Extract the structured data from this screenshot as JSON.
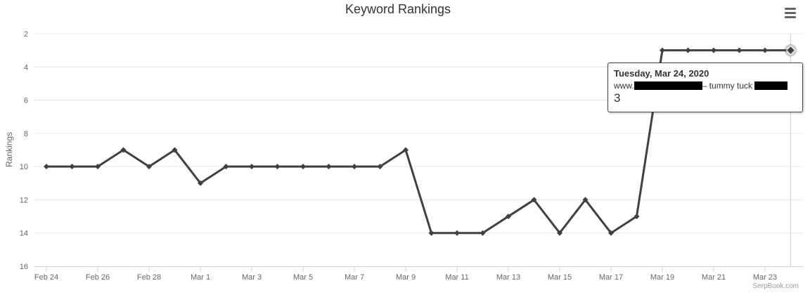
{
  "header": {
    "title": "Keyword Rankings",
    "menu_icon": "hamburger-menu-icon"
  },
  "credit": "SerpBook.com",
  "tooltip": {
    "date": "Tuesday, Mar 24, 2020",
    "prefix": "www.",
    "keyword": "– tummy tuck",
    "value": "3"
  },
  "chart_data": {
    "type": "line",
    "title": "Keyword Rankings",
    "xlabel": "",
    "ylabel": "Rankings",
    "y_reversed": true,
    "ylim": [
      2,
      16
    ],
    "yticks": [
      2,
      4,
      6,
      8,
      10,
      12,
      14,
      16
    ],
    "grid": true,
    "x": [
      "Feb 24",
      "Feb 25",
      "Feb 26",
      "Feb 27",
      "Feb 28",
      "Feb 29",
      "Mar 1",
      "Mar 2",
      "Mar 3",
      "Mar 4",
      "Mar 5",
      "Mar 6",
      "Mar 7",
      "Mar 8",
      "Mar 9",
      "Mar 10",
      "Mar 11",
      "Mar 12",
      "Mar 13",
      "Mar 14",
      "Mar 15",
      "Mar 16",
      "Mar 17",
      "Mar 18",
      "Mar 19",
      "Mar 20",
      "Mar 21",
      "Mar 22",
      "Mar 23",
      "Mar 24"
    ],
    "xtick_labels": [
      "Feb 24",
      "Feb 26",
      "Feb 28",
      "Mar 1",
      "Mar 3",
      "Mar 5",
      "Mar 7",
      "Mar 9",
      "Mar 11",
      "Mar 13",
      "Mar 15",
      "Mar 17",
      "Mar 19",
      "Mar 21",
      "Mar 23"
    ],
    "series": [
      {
        "values": [
          10,
          10,
          10,
          9,
          10,
          9,
          11,
          10,
          10,
          10,
          10,
          10,
          10,
          10,
          9,
          14,
          14,
          14,
          13,
          12,
          14,
          12,
          14,
          13,
          3,
          3,
          3,
          3,
          3,
          3
        ],
        "color": "#404040"
      }
    ],
    "highlighted_index": 29
  }
}
